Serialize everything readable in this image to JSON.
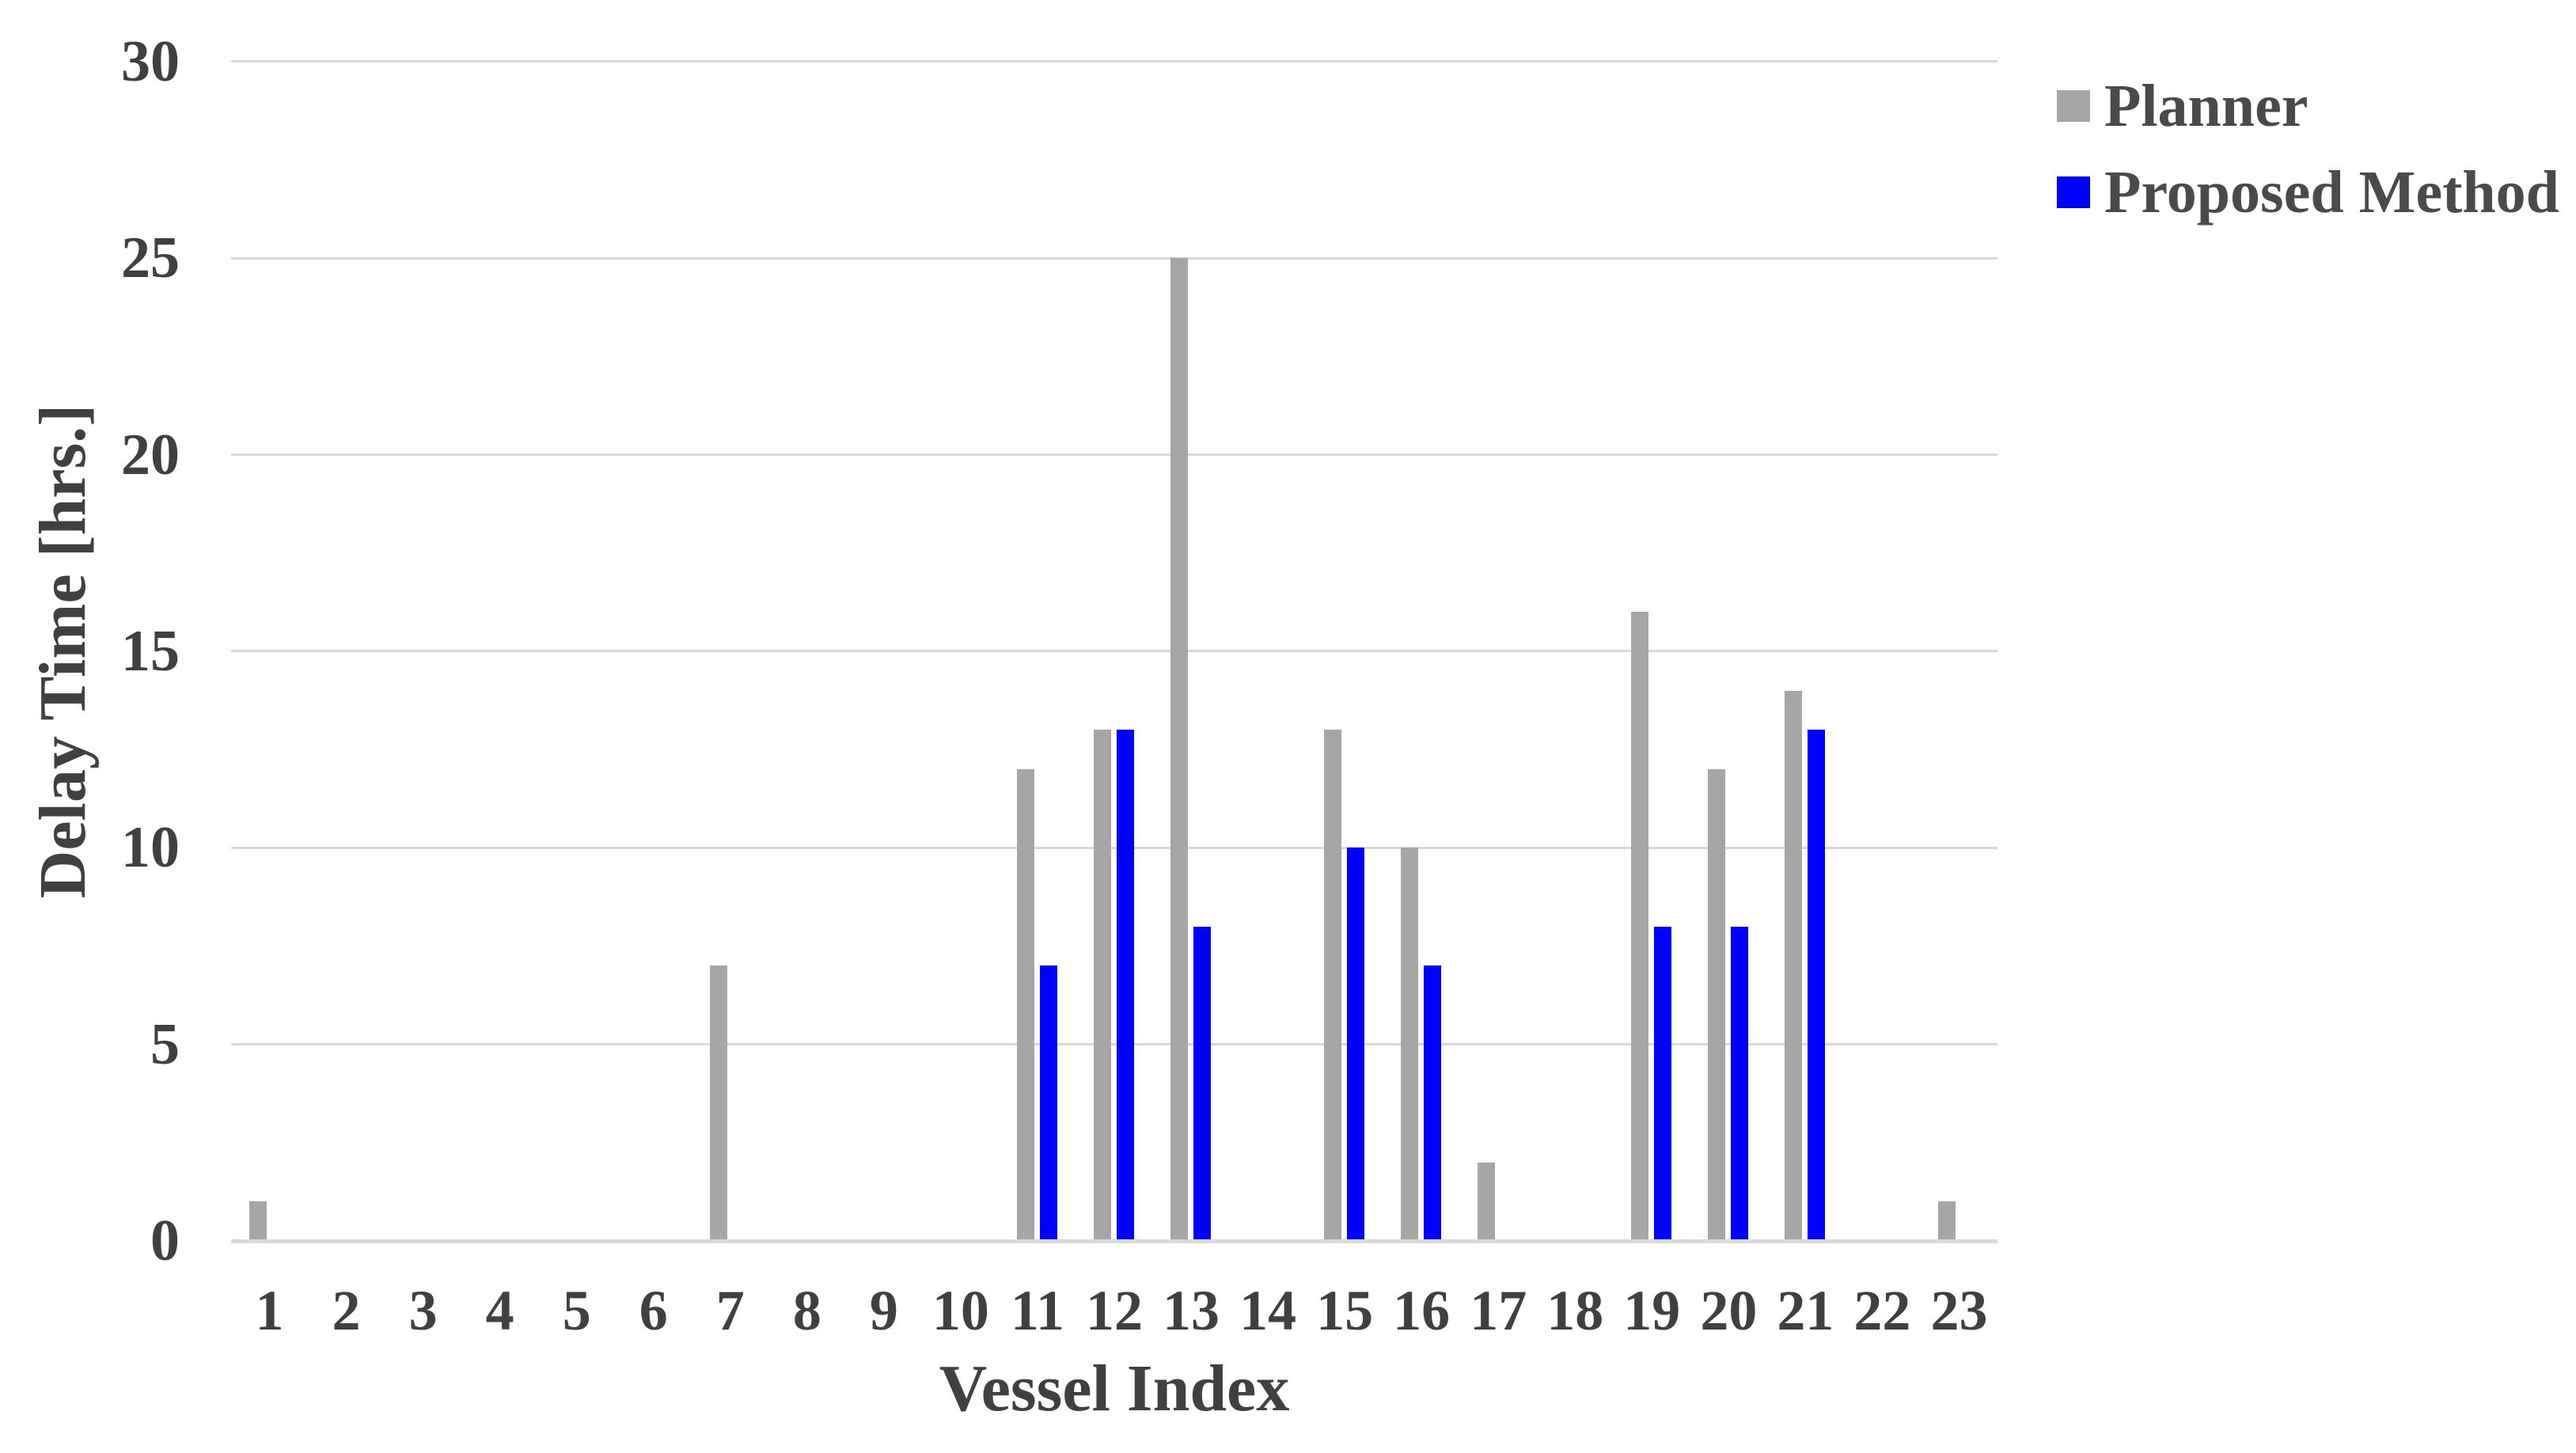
{
  "chart_data": {
    "type": "bar",
    "title": "",
    "xlabel": "Vessel Index",
    "ylabel": "Delay Time [hrs.]",
    "categories": [
      "1",
      "2",
      "3",
      "4",
      "5",
      "6",
      "7",
      "8",
      "9",
      "10",
      "11",
      "12",
      "13",
      "14",
      "15",
      "16",
      "17",
      "18",
      "19",
      "20",
      "21",
      "22",
      "23"
    ],
    "series": [
      {
        "name": "Planner",
        "color": "#A6A6A6",
        "values": [
          1,
          0,
          0,
          0,
          0,
          0,
          7,
          0,
          0,
          0,
          12,
          13,
          25,
          0,
          13,
          10,
          2,
          0,
          16,
          12,
          14,
          0,
          1
        ]
      },
      {
        "name": "Proposed Method",
        "color": "#0000FF",
        "values": [
          0,
          0,
          0,
          0,
          0,
          0,
          0,
          0,
          0,
          0,
          7,
          13,
          8,
          0,
          10,
          7,
          0,
          0,
          8,
          8,
          13,
          0,
          0
        ]
      }
    ],
    "y_ticks": [
      0,
      5,
      10,
      15,
      20,
      25,
      30
    ],
    "ylim": [
      0,
      30
    ],
    "grid": true,
    "legend_position": "top-right",
    "colors": {
      "gridline": "#D9D9D9",
      "axis_line": "#D9D9D9",
      "text": "#404040",
      "background": "#FFFFFF"
    }
  }
}
